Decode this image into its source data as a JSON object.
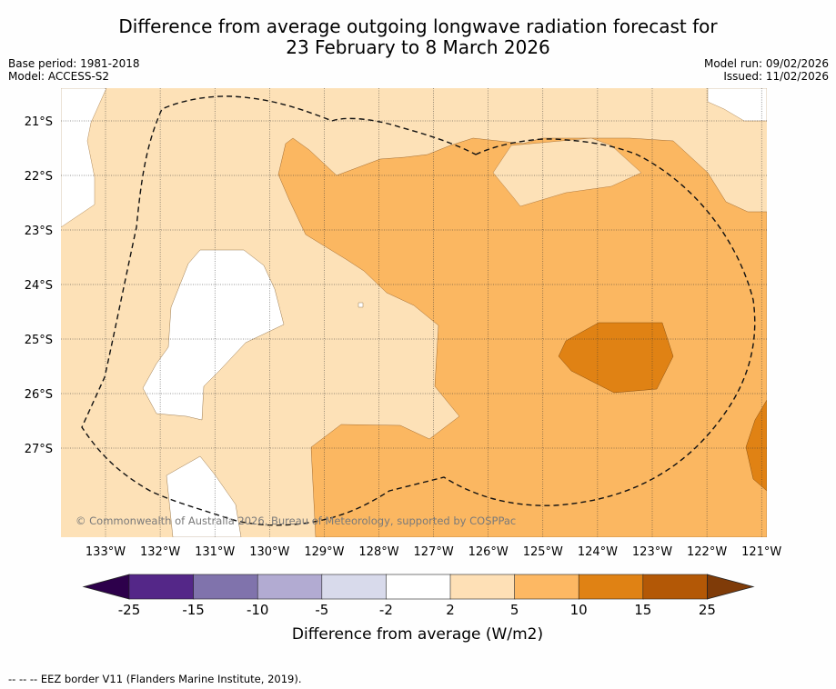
{
  "title": {
    "line1": "Difference from average outgoing longwave radiation forecast for",
    "line2": "23 February to 8 March 2026"
  },
  "info_left": {
    "base_period": "Base period: 1981-2018",
    "model": "Model: ACCESS-S2"
  },
  "info_right": {
    "model_run": "Model run: 09/02/2026",
    "issued": "Issued: 11/02/2026"
  },
  "map": {
    "latitude_labels": [
      "21°S",
      "22°S",
      "23°S",
      "24°S",
      "25°S",
      "26°S",
      "27°S"
    ],
    "longitude_labels": [
      "133°W",
      "132°W",
      "131°W",
      "130°W",
      "129°W",
      "128°W",
      "127°W",
      "126°W",
      "125°W",
      "124°W",
      "123°W",
      "122°W",
      "121°W"
    ],
    "copyright": "© Commonwealth of Australia 2026, Bureau of Meteorology, supported by COSPPac",
    "colors": {
      "band_2_5": "#fde1b7",
      "band_5_10": "#fbb761",
      "band_10_15": "#e08214",
      "band_neutral": "#ffffff"
    }
  },
  "colorbar": {
    "label": "Difference from average (W/m2)",
    "ticks": [
      "-25",
      "-15",
      "-10",
      "-5",
      "-2",
      "2",
      "5",
      "10",
      "15",
      "25"
    ],
    "colors": [
      "#2d004b",
      "#542788",
      "#8073ac",
      "#b2abd2",
      "#d8daeb",
      "#ffffff",
      "#fee0b6",
      "#fdb863",
      "#e08214",
      "#b35806",
      "#7f3b08"
    ]
  },
  "footer": "-- -- -- EEZ border V11 (Flanders Marine Institute, 2019)."
}
